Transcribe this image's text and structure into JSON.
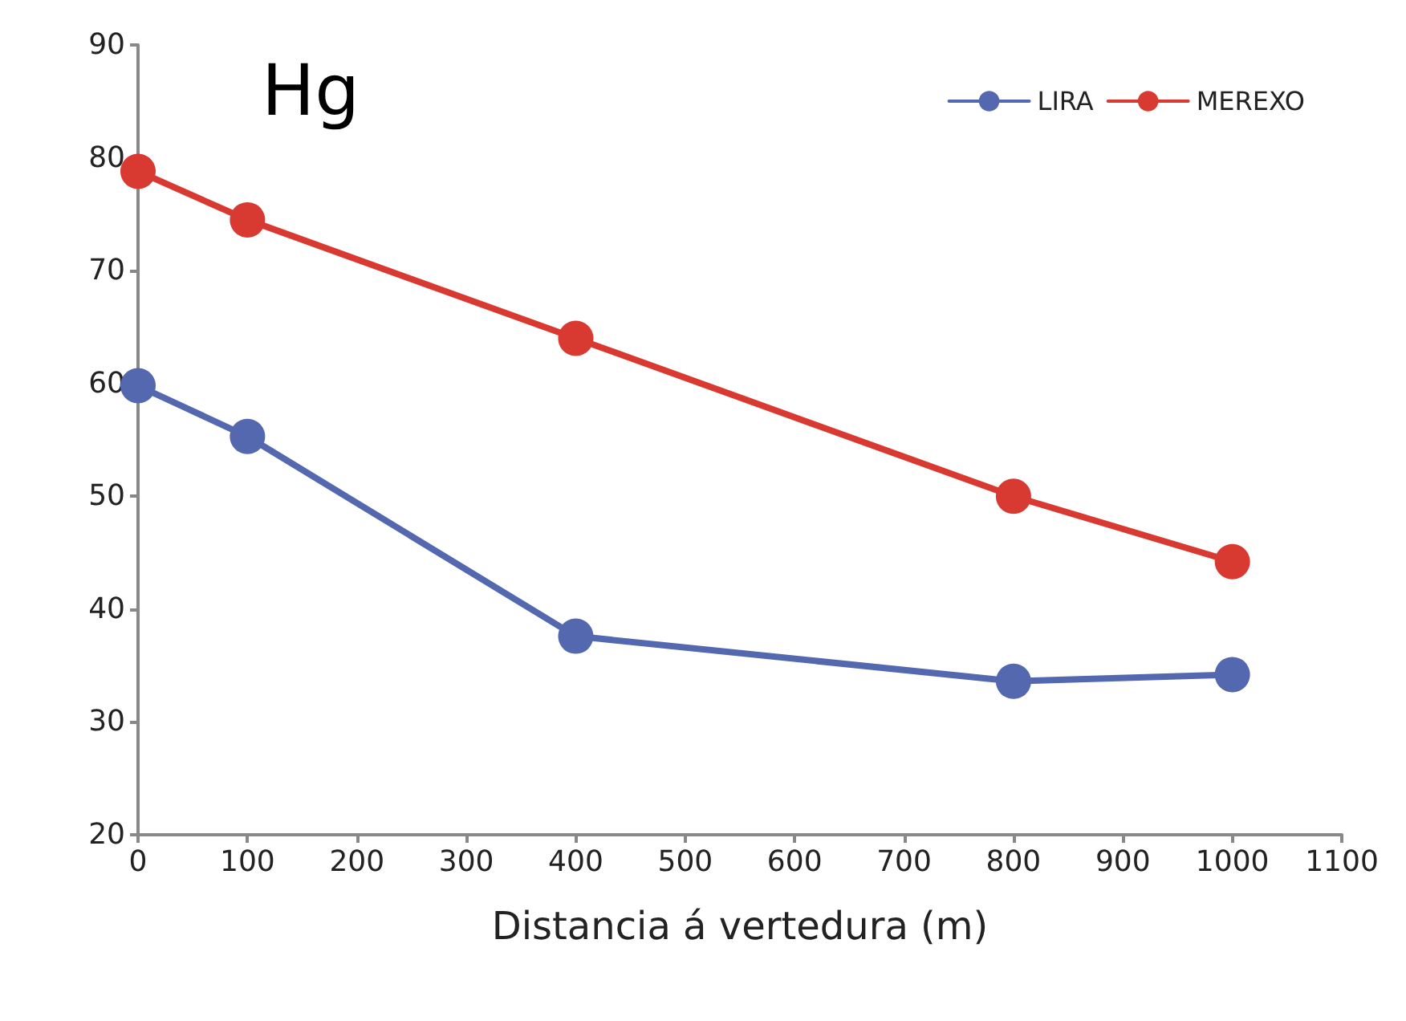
{
  "chart_data": {
    "type": "line",
    "title": "Hg",
    "xlabel": "Distancia á vertedura (m)",
    "x": [
      0,
      100,
      400,
      800,
      1000
    ],
    "series": [
      {
        "name": "LIRA",
        "color": "#5468b0",
        "values": [
          59.8,
          55.3,
          37.6,
          33.6,
          34.2
        ]
      },
      {
        "name": "MEREXO",
        "color": "#d83a32",
        "values": [
          78.8,
          74.5,
          64,
          50,
          44.2
        ]
      }
    ],
    "xlim": [
      0,
      1100
    ],
    "xticks": [
      0,
      100,
      200,
      300,
      400,
      500,
      600,
      700,
      800,
      900,
      1000,
      1100
    ],
    "ylim": [
      20,
      90
    ],
    "yticks": [
      20,
      30,
      40,
      50,
      60,
      70,
      80,
      90
    ],
    "grid": false,
    "legend": "top right",
    "marker": "circle",
    "line_style": "solid"
  }
}
